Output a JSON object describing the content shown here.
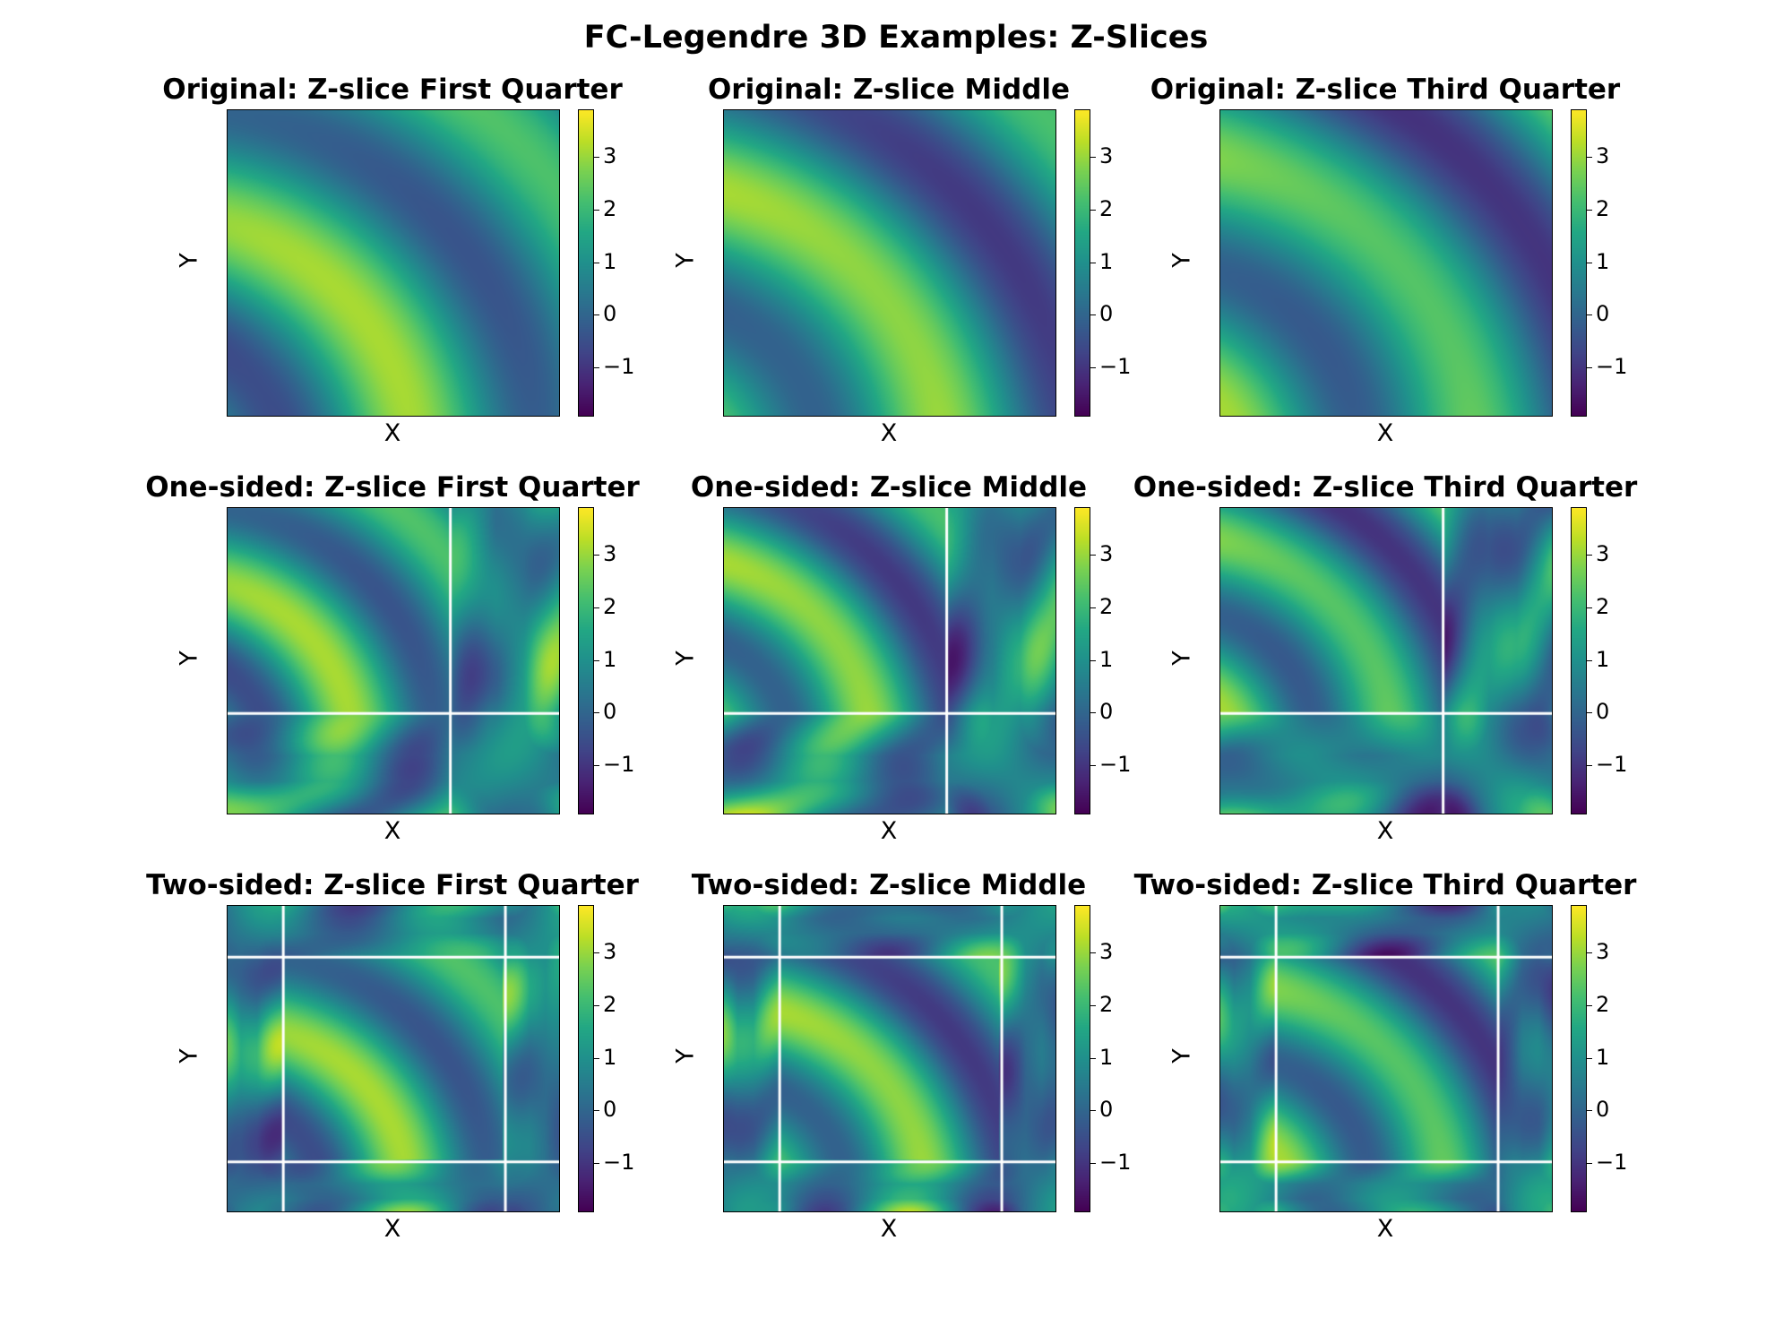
{
  "chart_data": {
    "type": "heatmap",
    "title": "FC-Legendre 3D Examples: Z-Slices",
    "xlabel": "X",
    "ylabel": "Y",
    "colormap": "viridis",
    "colorbar_range": [
      -1.9,
      3.9
    ],
    "colorbar_ticks": [
      -1,
      0,
      1,
      2,
      3
    ],
    "colorbar_tick_labels": [
      "−1",
      "0",
      "1",
      "2",
      "3"
    ],
    "panels": [
      {
        "title": "Original: Z-slice First Quarter",
        "row": "Original",
        "slice": "First Quarter",
        "boundary_lines": "none"
      },
      {
        "title": "Original: Z-slice Middle",
        "row": "Original",
        "slice": "Middle",
        "boundary_lines": "none"
      },
      {
        "title": "Original: Z-slice Third Quarter",
        "row": "Original",
        "slice": "Third Quarter",
        "boundary_lines": "none"
      },
      {
        "title": "One-sided: Z-slice First Quarter",
        "row": "One-sided",
        "slice": "First Quarter",
        "boundary_lines": "one-sided"
      },
      {
        "title": "One-sided: Z-slice Middle",
        "row": "One-sided",
        "slice": "Middle",
        "boundary_lines": "one-sided"
      },
      {
        "title": "One-sided: Z-slice Third Quarter",
        "row": "One-sided",
        "slice": "Third Quarter",
        "boundary_lines": "one-sided"
      },
      {
        "title": "Two-sided: Z-slice First Quarter",
        "row": "Two-sided",
        "slice": "First Quarter",
        "boundary_lines": "two-sided"
      },
      {
        "title": "Two-sided: Z-slice Middle",
        "row": "Two-sided",
        "slice": "Middle",
        "boundary_lines": "two-sided"
      },
      {
        "title": "Two-sided: Z-slice Third Quarter",
        "row": "Two-sided",
        "slice": "Third Quarter",
        "boundary_lines": "two-sided"
      }
    ]
  }
}
